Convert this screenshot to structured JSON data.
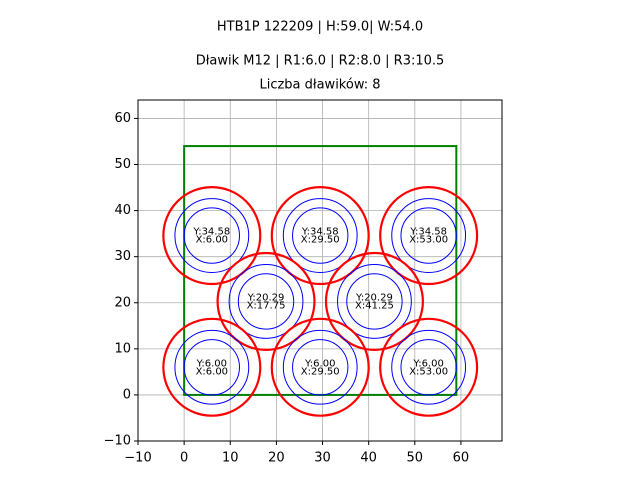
{
  "chart_data": {
    "type": "circles",
    "title": "HTB1P 122209 | H:59.0| W:54.0",
    "subtitle": "Dławik M12 | R1:6.0 | R2:8.0 | R3:10.5",
    "subtitle2": "Liczba dławików: 8",
    "xlim": [
      -10,
      68.9
    ],
    "ylim": [
      -10,
      64
    ],
    "xticks": [
      {
        "value": -10,
        "label": "−10"
      },
      0,
      10,
      20,
      30,
      40,
      50,
      60
    ],
    "yticks": [
      {
        "value": -10,
        "label": "−10"
      },
      0,
      10,
      20,
      30,
      40,
      50,
      60
    ],
    "grid": true,
    "rect": {
      "x": [
        0,
        59
      ],
      "y": [
        0,
        54
      ],
      "color": "#008000"
    },
    "radii": [
      {
        "value": 6,
        "color": "#0000ff"
      },
      {
        "value": 8,
        "color": "#0000ff"
      },
      {
        "value": 10.5,
        "color": "#ff0000"
      }
    ],
    "x": [
      6.0,
      29.5,
      53.0,
      17.75,
      41.25,
      6.0,
      29.5,
      53.0
    ],
    "x_labels": [
      "X:6.00",
      "X:29.50",
      "X:53.00",
      "X:17.75",
      "X:41.25",
      "X:6.00",
      "X:29.50",
      "X:53.00"
    ],
    "values": [
      34.58,
      34.58,
      34.58,
      20.29,
      20.29,
      6.0,
      6.0,
      6.0
    ],
    "value_labels": [
      "Y:34.58",
      "Y:34.58",
      "Y:34.58",
      "Y:20.29",
      "Y:20.29",
      "Y:6.00",
      "Y:6.00",
      "Y:6.00"
    ]
  }
}
